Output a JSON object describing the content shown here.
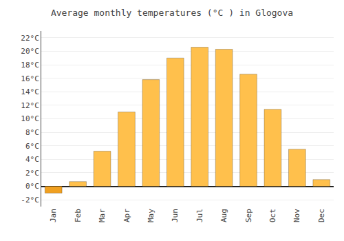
{
  "chart_data": {
    "type": "bar",
    "title": "Average monthly temperatures (°C ) in Glogova",
    "categories": [
      "Jan",
      "Feb",
      "Mar",
      "Apr",
      "May",
      "Jun",
      "Jul",
      "Aug",
      "Sep",
      "Oct",
      "Nov",
      "Dec"
    ],
    "values": [
      -1.0,
      0.7,
      5.2,
      11.0,
      15.8,
      19.0,
      20.6,
      20.3,
      16.6,
      11.4,
      5.5,
      1.0
    ],
    "colors": [
      "#F0A020",
      "#FFC04C",
      "#FFC04C",
      "#FFC04C",
      "#FFC04C",
      "#FFC04C",
      "#FFC04C",
      "#FFC04C",
      "#FFC04C",
      "#FFC04C",
      "#FFC04C",
      "#FFC04C"
    ],
    "ylim": [
      -3,
      23
    ],
    "yticks": [
      {
        "value": -2,
        "label": "-2°C"
      },
      {
        "value": 0,
        "label": "0°C"
      },
      {
        "value": 2,
        "label": "2°C"
      },
      {
        "value": 4,
        "label": "4°C"
      },
      {
        "value": 6,
        "label": "6°C"
      },
      {
        "value": 8,
        "label": "8°C"
      },
      {
        "value": 10,
        "label": "10°C"
      },
      {
        "value": 12,
        "label": "12°C"
      },
      {
        "value": 14,
        "label": "14°C"
      },
      {
        "value": 16,
        "label": "16°C"
      },
      {
        "value": 18,
        "label": "18°C"
      },
      {
        "value": 20,
        "label": "20°C"
      },
      {
        "value": 22,
        "label": "22°C"
      }
    ],
    "grid": true
  }
}
